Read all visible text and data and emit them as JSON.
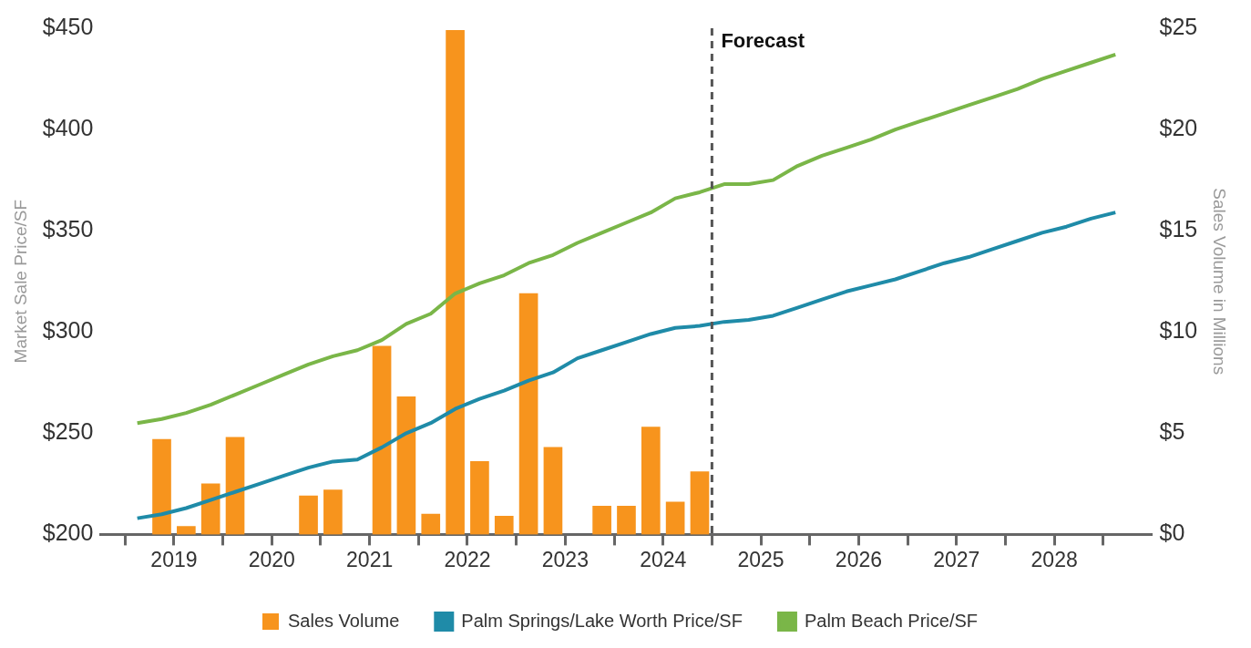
{
  "chart_data": {
    "type": "line",
    "ylabel": "Market Sale Price/SF",
    "y2label": "Sales Volume in Millions",
    "xlim": [
      2018.75,
      2029.5
    ],
    "xticks": [
      {
        "value": 2019,
        "label": null
      },
      {
        "value": 2019.5,
        "label": "2019"
      },
      {
        "value": 2020,
        "label": null
      },
      {
        "value": 2020.5,
        "label": "2020"
      },
      {
        "value": 2021,
        "label": null
      },
      {
        "value": 2021.5,
        "label": "2021"
      },
      {
        "value": 2022,
        "label": null
      },
      {
        "value": 2022.5,
        "label": "2022"
      },
      {
        "value": 2023,
        "label": null
      },
      {
        "value": 2023.5,
        "label": "2023"
      },
      {
        "value": 2024,
        "label": null
      },
      {
        "value": 2024.5,
        "label": "2024"
      },
      {
        "value": 2025,
        "label": null
      },
      {
        "value": 2025.5,
        "label": "2025"
      },
      {
        "value": 2026,
        "label": null
      },
      {
        "value": 2026.5,
        "label": "2026"
      },
      {
        "value": 2027,
        "label": null
      },
      {
        "value": 2027.5,
        "label": "2027"
      },
      {
        "value": 2028,
        "label": null
      },
      {
        "value": 2028.5,
        "label": "2028"
      },
      {
        "value": 2029,
        "label": null
      }
    ],
    "ylim": [
      200,
      450
    ],
    "yticks": [
      {
        "value": 200,
        "label": "$200"
      },
      {
        "value": 250,
        "label": "$250"
      },
      {
        "value": 300,
        "label": "$300"
      },
      {
        "value": 350,
        "label": "$350"
      },
      {
        "value": 400,
        "label": "$400"
      },
      {
        "value": 450,
        "label": "$450"
      }
    ],
    "y2lim": [
      0,
      25
    ],
    "y2ticks": [
      {
        "value": 0,
        "label": "$0"
      },
      {
        "value": 5,
        "label": "$5"
      },
      {
        "value": 10,
        "label": "$10"
      },
      {
        "value": 15,
        "label": "$15"
      },
      {
        "value": 20,
        "label": "$20"
      },
      {
        "value": 25,
        "label": "$25"
      }
    ],
    "grid": false,
    "legend": "bottom",
    "ref_lines": [
      {
        "axis": "x",
        "value": 2025,
        "label": "Forecast",
        "color": "#555555",
        "line_style": "dashed"
      }
    ],
    "series": [
      {
        "name": "Sales Volume",
        "type": "bar",
        "axis": "y2",
        "color": "#f7941d",
        "x": [
          2019.375,
          2019.625,
          2019.875,
          2020.125,
          2020.875,
          2021.125,
          2021.625,
          2021.875,
          2022.125,
          2022.375,
          2022.625,
          2022.875,
          2023.125,
          2023.375,
          2023.875,
          2024.125,
          2024.375,
          2024.625,
          2024.875
        ],
        "values": [
          4.7,
          0.4,
          2.5,
          4.8,
          1.9,
          2.2,
          9.3,
          6.8,
          1.0,
          24.9,
          3.6,
          0.9,
          11.9,
          4.3,
          1.4,
          1.4,
          5.3,
          1.6,
          3.1
        ]
      },
      {
        "name": "Palm Springs/Lake Worth Price/SF",
        "color": "#1f8ba8",
        "x": [
          2019.125,
          2019.375,
          2019.625,
          2019.875,
          2020.125,
          2020.375,
          2020.625,
          2020.875,
          2021.125,
          2021.375,
          2021.625,
          2021.875,
          2022.125,
          2022.375,
          2022.625,
          2022.875,
          2023.125,
          2023.375,
          2023.625,
          2023.875,
          2024.125,
          2024.375,
          2024.625,
          2024.875,
          2025.125,
          2025.375,
          2025.625,
          2025.875,
          2026.125,
          2026.375,
          2026.625,
          2026.875,
          2027.125,
          2027.375,
          2027.625,
          2027.875,
          2028.125,
          2028.375,
          2028.625,
          2028.875,
          2029.125
        ],
        "values": [
          208,
          210,
          213,
          217,
          221,
          225,
          229,
          233,
          236,
          237,
          243,
          250,
          255,
          262,
          267,
          271,
          276,
          280,
          287,
          291,
          295,
          299,
          302,
          303,
          305,
          306,
          308,
          312,
          316,
          320,
          323,
          326,
          330,
          334,
          337,
          341,
          345,
          349,
          352,
          356,
          359
        ]
      },
      {
        "name": "Palm Beach Price/SF",
        "color": "#7ab648",
        "x": [
          2019.125,
          2019.375,
          2019.625,
          2019.875,
          2020.125,
          2020.375,
          2020.625,
          2020.875,
          2021.125,
          2021.375,
          2021.625,
          2021.875,
          2022.125,
          2022.375,
          2022.625,
          2022.875,
          2023.125,
          2023.375,
          2023.625,
          2023.875,
          2024.125,
          2024.375,
          2024.625,
          2024.875,
          2025.125,
          2025.375,
          2025.625,
          2025.875,
          2026.125,
          2026.375,
          2026.625,
          2026.875,
          2027.125,
          2027.375,
          2027.625,
          2027.875,
          2028.125,
          2028.375,
          2028.625,
          2028.875,
          2029.125
        ],
        "values": [
          255,
          257,
          260,
          264,
          269,
          274,
          279,
          284,
          288,
          291,
          296,
          304,
          309,
          319,
          324,
          328,
          334,
          338,
          344,
          349,
          354,
          359,
          366,
          369,
          373,
          373,
          375,
          382,
          387,
          391,
          395,
          400,
          404,
          408,
          412,
          416,
          420,
          425,
          429,
          433,
          437
        ]
      }
    ]
  }
}
